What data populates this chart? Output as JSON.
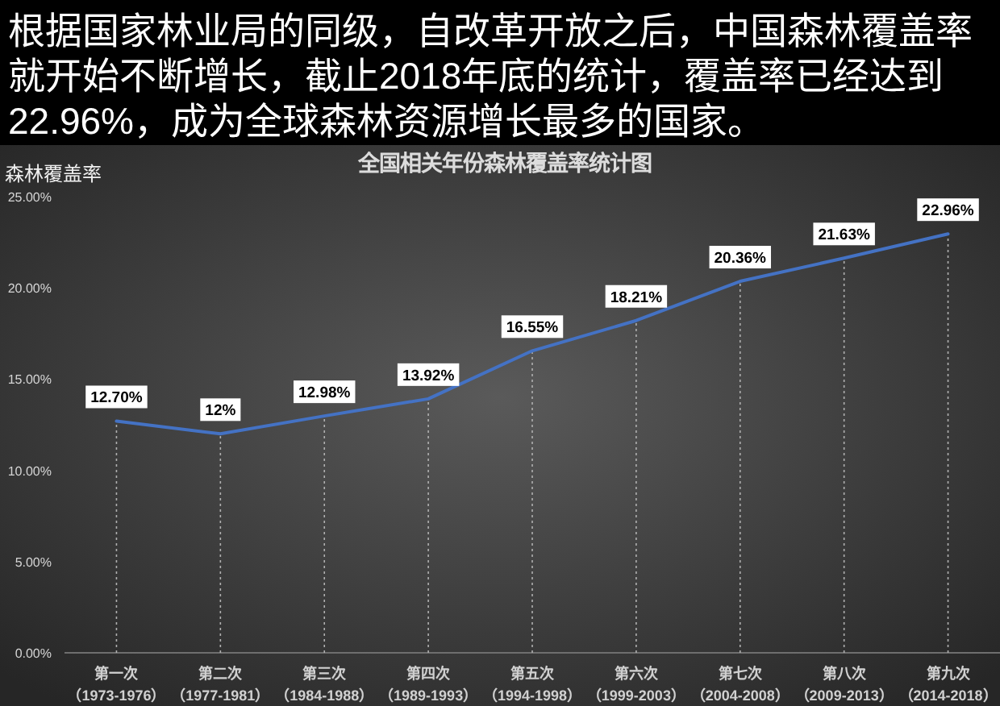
{
  "chart_data": {
    "type": "line",
    "title": "根据国家林业局的同级，自改革开放之后，中国森林覆盖率就开始不断增长，截止2018年底的统计，覆盖率已经达到22.96%，成为全球森林资源增长最多的国家。",
    "subtitle": "全国相关年份森林覆盖率统计图",
    "ylabel": "森林覆盖率",
    "categories": [
      "第一次（1973-1976）",
      "第二次（1977-1981）",
      "第三次（1984-1988）",
      "第四次（1989-1993）",
      "第五次（1994-1998）",
      "第六次（1999-2003）",
      "第七次（2004-2008）",
      "第八次（2009-2013）",
      "第九次（2014-2018）"
    ],
    "series": [
      {
        "color": "#4472c4",
        "values": [
          12.7,
          12,
          12.98,
          13.92,
          16.55,
          18.21,
          20.36,
          21.63,
          22.96
        ],
        "value_labels": [
          "12.70%",
          "12%",
          "12.98%",
          "13.92%",
          "16.55%",
          "18.21%",
          "20.36%",
          "21.63%",
          "22.96%"
        ]
      }
    ],
    "ylim": [
      0,
      25
    ],
    "yticks": [
      {
        "value": 0,
        "label": "0.00%"
      },
      {
        "value": 5,
        "label": "5.00%"
      },
      {
        "value": 10,
        "label": "10.00%"
      },
      {
        "value": 15,
        "label": "15.00%"
      },
      {
        "value": 20,
        "label": "20.00%"
      },
      {
        "value": 25,
        "label": "25.00%"
      }
    ],
    "grid": "x",
    "line_style": "solid"
  }
}
